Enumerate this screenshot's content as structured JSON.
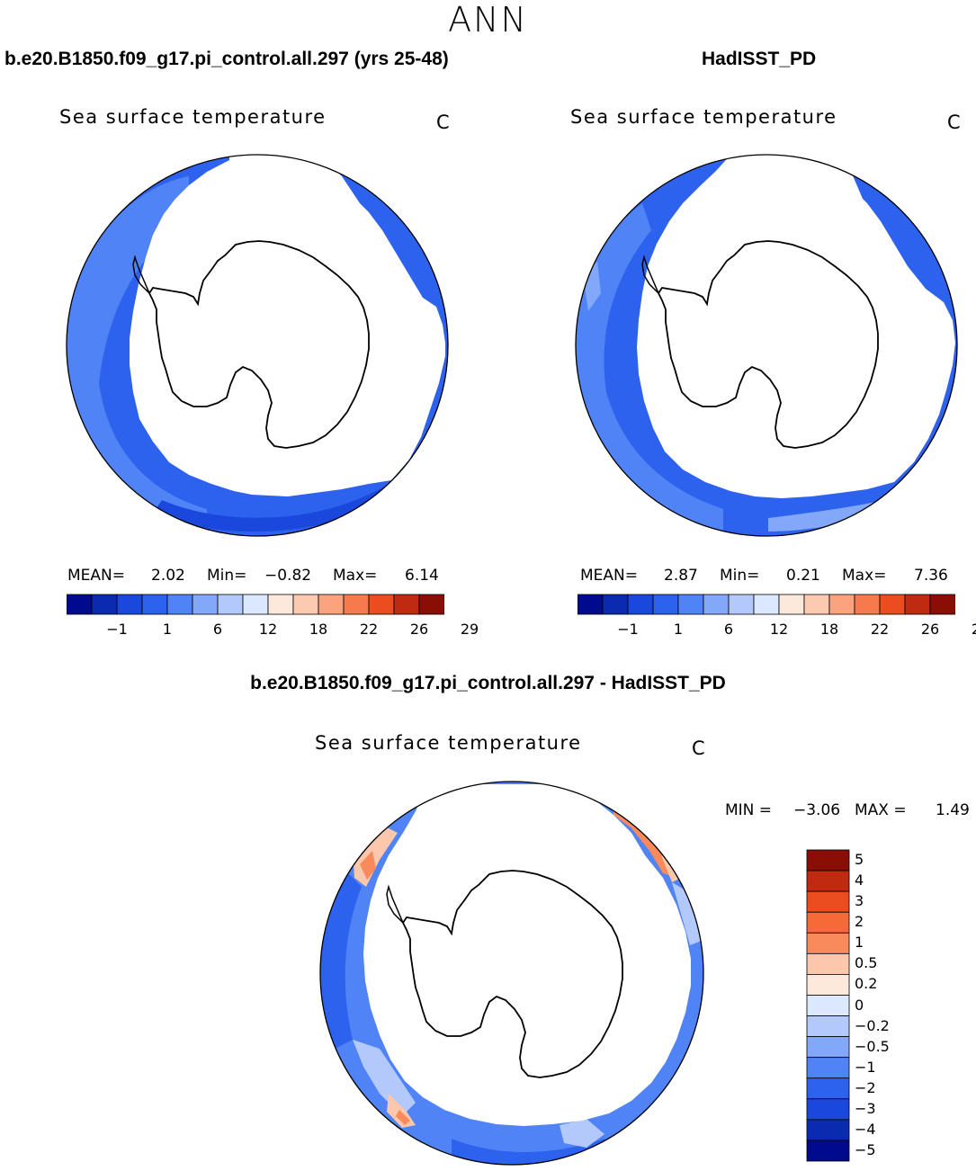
{
  "season": "ANN",
  "panels": [
    {
      "case_title": "b.e20.B1850.f09_g17.pi_control.all.297 (yrs 25-48)",
      "plot_title": "Sea surface temperature",
      "units": "C",
      "stats": {
        "mean_label": "MEAN=",
        "mean": "2.02",
        "min_label": "Min=",
        "min": "−0.82",
        "max_label": "Max=",
        "max": "6.14"
      }
    },
    {
      "case_title": "HadISST_PD",
      "plot_title": "Sea surface temperature",
      "units": "C",
      "stats": {
        "mean_label": "MEAN=",
        "mean": "2.87",
        "min_label": "Min=",
        "min": "0.21",
        "max_label": "Max=",
        "max": "7.36"
      }
    }
  ],
  "abs_colorbar": {
    "colors": [
      "#000a8c",
      "#0a2ab0",
      "#1a48dc",
      "#2d62ee",
      "#4f83f6",
      "#83a8fa",
      "#b3c9fb",
      "#dbe8fd",
      "#fde9dc",
      "#fccab0",
      "#faa37e",
      "#f77a4e",
      "#ec4d1f",
      "#bf2a10",
      "#8a0e05"
    ],
    "labels": [
      "−1",
      "1",
      "6",
      "12",
      "18",
      "22",
      "26",
      "29"
    ]
  },
  "diff_panel": {
    "title": "b.e20.B1850.f09_g17.pi_control.all.297 - HadISST_PD",
    "plot_title": "Sea surface temperature",
    "units": "C",
    "stats": {
      "min_label": "MIN =",
      "min": "−3.06",
      "max_label": "MAX =",
      "max": "1.49"
    }
  },
  "diff_colorbar": {
    "colors_top_to_bottom": [
      "#8a0e05",
      "#bf2a10",
      "#ec4d1f",
      "#f56a36",
      "#f98a5c",
      "#fcc7ab",
      "#fde9dc",
      "#dbe8fd",
      "#b3c9fb",
      "#83a8fa",
      "#4f83f6",
      "#2d62ee",
      "#1a48dc",
      "#0a2ab0",
      "#000a8c"
    ],
    "labels": [
      "5",
      "4",
      "3",
      "2",
      "1",
      "0.5",
      "0.2",
      "0",
      "−0.2",
      "−0.5",
      "−1",
      "−2",
      "−3",
      "−4",
      "−5"
    ]
  },
  "colors": {
    "ocean_cold": "#2d62ee",
    "ocean_dark": "#1a48dc",
    "ocean_light": "#4f83f6",
    "warm": "#f98a5c"
  }
}
